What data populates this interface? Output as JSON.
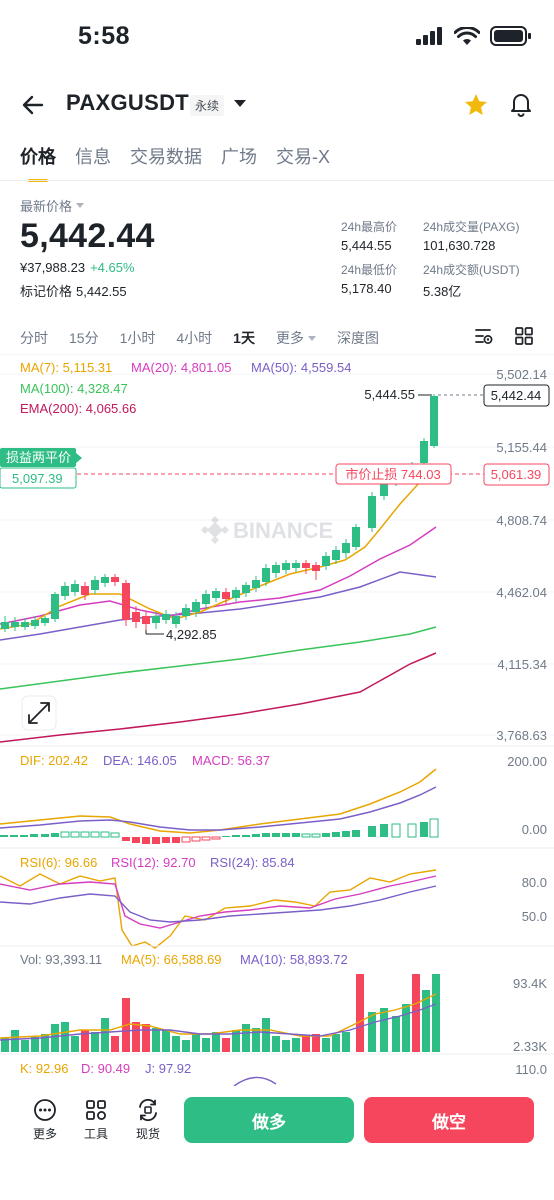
{
  "status_bar": {
    "time": "5:58"
  },
  "header": {
    "pair": "PAXGUSDT",
    "contract_type": "永续"
  },
  "tabs": [
    {
      "label": "价格",
      "active": true
    },
    {
      "label": "信息",
      "active": false
    },
    {
      "label": "交易数据",
      "active": false
    },
    {
      "label": "广场",
      "active": false
    },
    {
      "label": "交易-X",
      "active": false
    }
  ],
  "price": {
    "label": "最新价格",
    "last": "5,442.44",
    "cny": "¥37,988.23",
    "change": "+4.65%",
    "mark_label": "标记价格",
    "mark_value": "5,442.55"
  },
  "stats": {
    "high_label": "24h最高价",
    "high": "5,444.55",
    "vol_label": "24h成交量(PAXG)",
    "vol": "101,630.728",
    "low_label": "24h最低价",
    "low": "5,178.40",
    "turnover_label": "24h成交额(USDT)",
    "turnover": "5.38亿"
  },
  "timeframes": [
    {
      "label": "分时",
      "active": false
    },
    {
      "label": "15分",
      "active": false
    },
    {
      "label": "1小时",
      "active": false
    },
    {
      "label": "4小时",
      "active": false
    },
    {
      "label": "1天",
      "active": true
    }
  ],
  "timeframe_more": "更多",
  "depth_label": "深度图",
  "colors": {
    "up": "#2ebd85",
    "down": "#f6465d",
    "accent": "#f0b90b",
    "ma7": "#e9a500",
    "ma20": "#d63cc0",
    "ma50": "#7b5fc9",
    "ma100": "#39c45a",
    "ema200": "#c2185b"
  },
  "main_indicators": {
    "ma7": "MA(7): 5,115.31",
    "ma20": "MA(20): 4,801.05",
    "ma50": "MA(50): 4,559.54",
    "ma100": "MA(100): 4,328.47",
    "ema200": "EMA(200): 4,065.66"
  },
  "price_axis": [
    "5,502.14",
    "5,155.44",
    "4,808.74",
    "4,462.04",
    "4,115.34",
    "3,768.63"
  ],
  "current_price_tag": "5,442.44",
  "high_marker": "5,444.55",
  "low_marker": "4,292.85",
  "position": {
    "label": "损益两平价",
    "value": "5,097.39",
    "stop_label": "市价止损 744.03",
    "stop_tag": "5,061.39"
  },
  "watermark": "BINANCE",
  "macd": {
    "dif": "DIF: 202.42",
    "dea": "DEA: 146.05",
    "macd": "MACD: 56.37",
    "axis_top": "200.00",
    "axis_zero": "0.00"
  },
  "rsi": {
    "rsi6": "RSI(6): 96.66",
    "rsi12": "RSI(12): 92.70",
    "rsi24": "RSI(24): 85.84",
    "axis_80": "80.0",
    "axis_50": "50.0"
  },
  "volume": {
    "vol": "Vol: 93,393.11",
    "ma5": "MA(5): 66,588.69",
    "ma10": "MA(10): 58,893.72",
    "axis_top": "93.4K",
    "axis_bottom": "2.33K"
  },
  "kdj": {
    "k": "K: 92.96",
    "d": "D: 90.49",
    "j": "J: 97.92",
    "axis_top": "110.0"
  },
  "bottom_bar": {
    "more": "更多",
    "tools": "工具",
    "spot": "现货",
    "long": "做多",
    "short": "做空"
  }
}
